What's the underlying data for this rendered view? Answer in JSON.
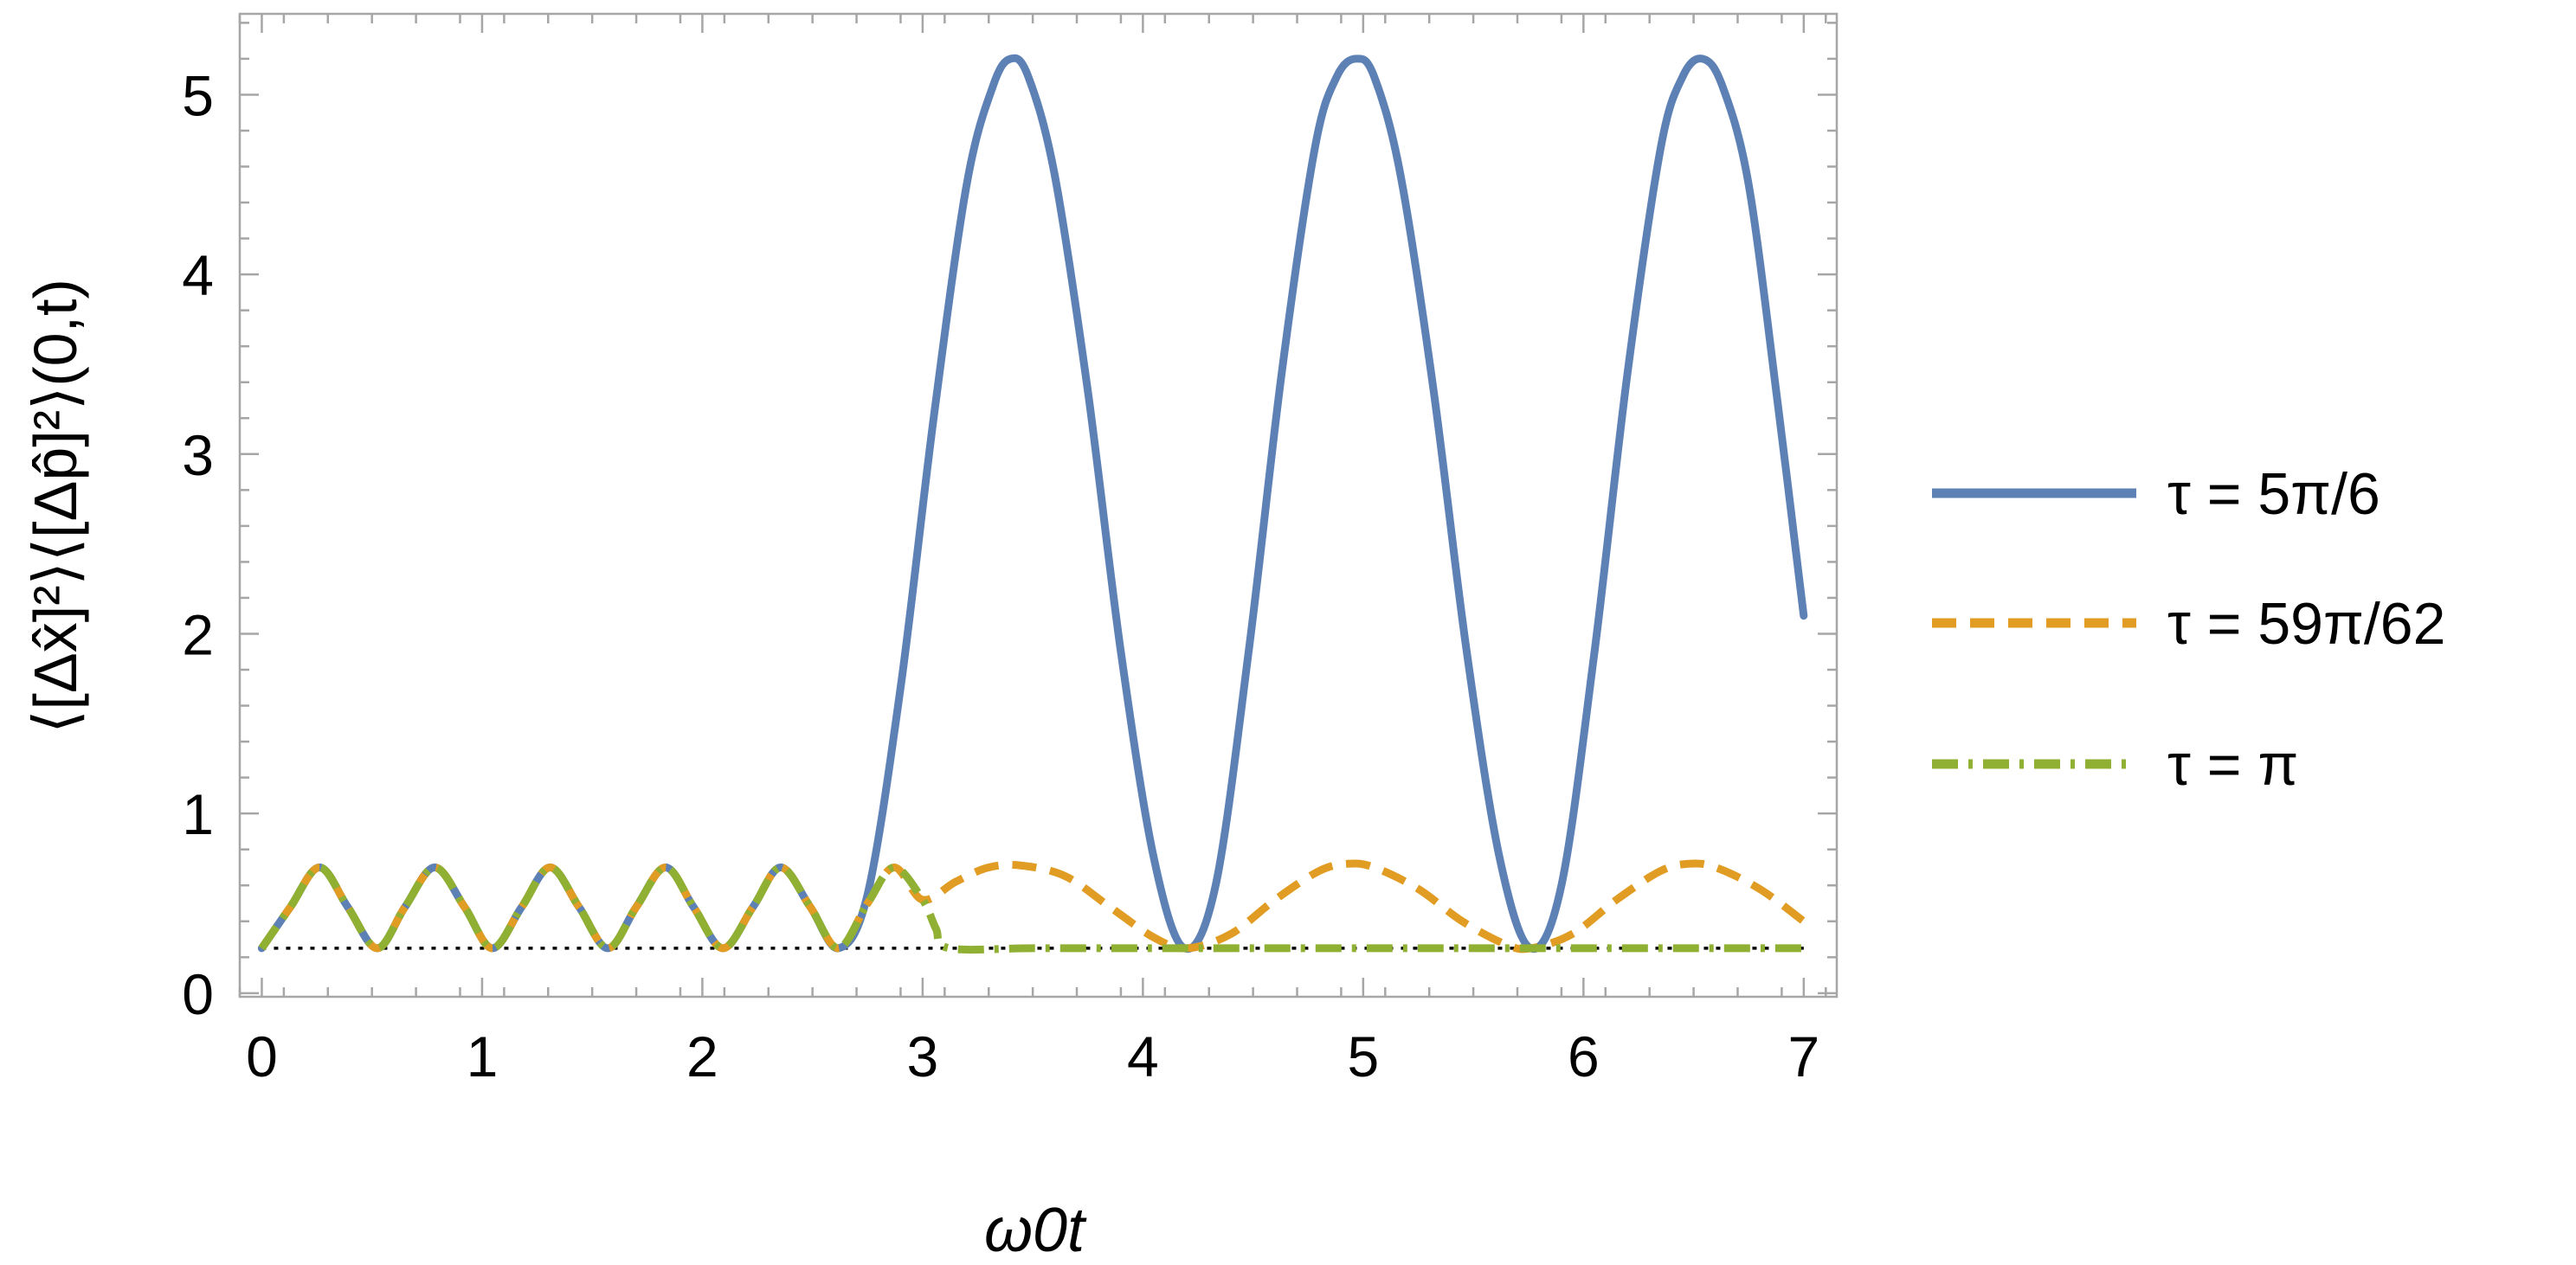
{
  "chart_data": {
    "type": "line",
    "title": "",
    "xlabel": "ω0t",
    "ylabel": "⟨[Δx̂]²⟩⟨[Δp̂]²⟩(0,t)",
    "xlim": [
      -0.1,
      7.15
    ],
    "ylim": [
      -0.02,
      5.45
    ],
    "xticks": [
      0,
      1,
      2,
      3,
      4,
      5,
      6,
      7
    ],
    "yticks": [
      0,
      1,
      2,
      3,
      4,
      5
    ],
    "grid": false,
    "frame": true,
    "legend_position": "right",
    "reference_line": {
      "y": 0.25,
      "style": "dotted",
      "color": "#000000"
    },
    "series": [
      {
        "name": "τ = 5π/6",
        "style": "solid",
        "color": "#5e81b5",
        "x": [
          0.0,
          0.13,
          0.262,
          0.39,
          0.524,
          0.65,
          0.785,
          0.92,
          1.047,
          1.18,
          1.309,
          1.44,
          1.571,
          1.7,
          1.833,
          1.96,
          2.094,
          2.23,
          2.356,
          2.49,
          2.618,
          2.75,
          2.9,
          3.05,
          3.2,
          3.32,
          3.4,
          3.48,
          3.6,
          3.75,
          3.9,
          4.05,
          4.189,
          4.33,
          4.48,
          4.63,
          4.78,
          4.88,
          4.97,
          5.05,
          5.17,
          5.32,
          5.47,
          5.62,
          5.76,
          5.9,
          6.05,
          6.2,
          6.35,
          6.45,
          6.54,
          6.63,
          6.75,
          6.88,
          7.0
        ],
        "y": [
          0.25,
          0.48,
          0.7,
          0.48,
          0.25,
          0.48,
          0.7,
          0.48,
          0.25,
          0.48,
          0.7,
          0.48,
          0.25,
          0.48,
          0.7,
          0.48,
          0.25,
          0.48,
          0.7,
          0.48,
          0.25,
          0.55,
          1.7,
          3.2,
          4.5,
          5.05,
          5.2,
          5.1,
          4.55,
          3.35,
          1.9,
          0.75,
          0.25,
          0.6,
          1.9,
          3.45,
          4.7,
          5.1,
          5.2,
          5.1,
          4.55,
          3.35,
          1.9,
          0.75,
          0.25,
          0.6,
          1.9,
          3.45,
          4.7,
          5.1,
          5.2,
          5.05,
          4.5,
          3.3,
          2.1
        ]
      },
      {
        "name": "τ = 59π/62",
        "style": "dashed",
        "color": "#e19c24",
        "x": [
          0.0,
          0.13,
          0.262,
          0.39,
          0.524,
          0.65,
          0.785,
          0.92,
          1.047,
          1.18,
          1.309,
          1.44,
          1.571,
          1.7,
          1.833,
          1.96,
          2.094,
          2.23,
          2.356,
          2.49,
          2.618,
          2.75,
          2.87,
          3.0,
          3.15,
          3.3,
          3.45,
          3.65,
          3.85,
          4.05,
          4.2,
          4.4,
          4.6,
          4.8,
          4.93,
          5.05,
          5.25,
          5.45,
          5.65,
          5.76,
          5.95,
          6.15,
          6.35,
          6.48,
          6.6,
          6.8,
          7.0
        ],
        "y": [
          0.25,
          0.48,
          0.7,
          0.48,
          0.25,
          0.48,
          0.7,
          0.48,
          0.25,
          0.48,
          0.7,
          0.48,
          0.25,
          0.48,
          0.7,
          0.48,
          0.25,
          0.48,
          0.7,
          0.48,
          0.25,
          0.5,
          0.7,
          0.52,
          0.62,
          0.7,
          0.71,
          0.65,
          0.48,
          0.31,
          0.25,
          0.33,
          0.52,
          0.68,
          0.72,
          0.7,
          0.58,
          0.4,
          0.27,
          0.25,
          0.33,
          0.52,
          0.68,
          0.72,
          0.7,
          0.58,
          0.4
        ]
      },
      {
        "name": "τ = π",
        "style": "dashdot",
        "color": "#8fb032",
        "x": [
          0.0,
          0.13,
          0.262,
          0.39,
          0.524,
          0.65,
          0.785,
          0.92,
          1.047,
          1.18,
          1.309,
          1.44,
          1.571,
          1.7,
          1.833,
          1.96,
          2.094,
          2.23,
          2.356,
          2.49,
          2.618,
          2.75,
          2.87,
          3.0,
          3.06,
          3.12,
          3.5,
          4.0,
          4.5,
          5.0,
          5.5,
          6.0,
          6.5,
          7.0
        ],
        "y": [
          0.25,
          0.48,
          0.7,
          0.48,
          0.25,
          0.48,
          0.7,
          0.48,
          0.25,
          0.48,
          0.7,
          0.48,
          0.25,
          0.48,
          0.7,
          0.48,
          0.25,
          0.48,
          0.7,
          0.48,
          0.25,
          0.5,
          0.7,
          0.52,
          0.36,
          0.25,
          0.25,
          0.25,
          0.25,
          0.25,
          0.25,
          0.25,
          0.25,
          0.25
        ]
      }
    ]
  }
}
